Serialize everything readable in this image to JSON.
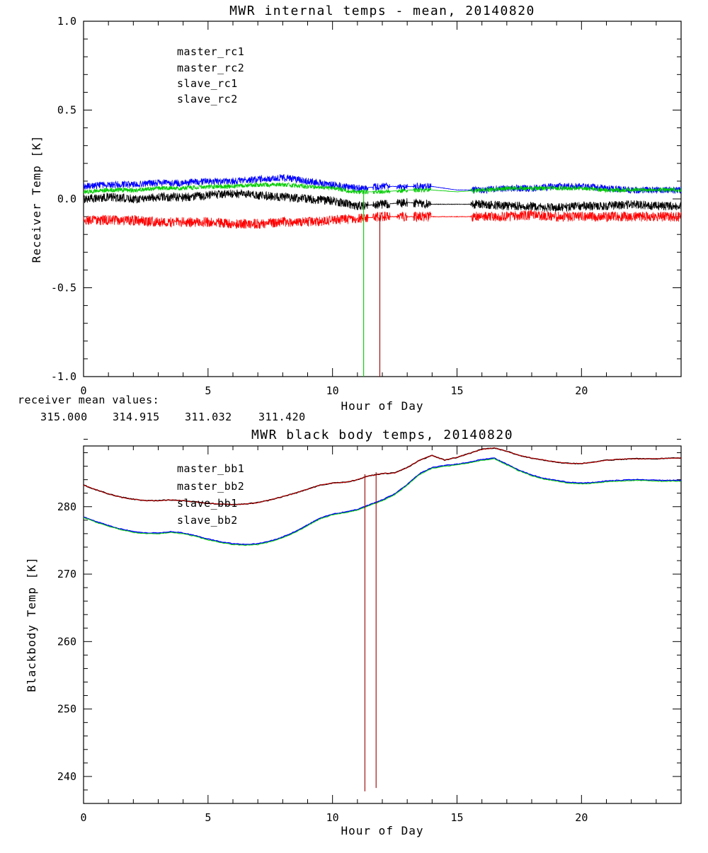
{
  "chart_data": [
    {
      "type": "line",
      "title": "MWR internal temps - mean, 20140820",
      "xlabel": "Hour of Day",
      "ylabel": "Receiver Temp [K]",
      "xlim": [
        0,
        24
      ],
      "ylim": [
        -1.0,
        1.0
      ],
      "xticks": [
        0,
        5,
        10,
        15,
        20
      ],
      "xtick_labels": [
        "0",
        "5",
        "10",
        "15",
        "20"
      ],
      "yticks": [
        -1.0,
        -0.5,
        0.0,
        0.5,
        1.0
      ],
      "ytick_labels": [
        "-1.0",
        "-0.5",
        "0.0",
        "0.5",
        "1.0"
      ],
      "x_minor_step": 1,
      "y_minor_step": 0.1,
      "grid": false,
      "legend_position": "upper-left-inside",
      "x_step": 1,
      "sample_step": 0.01,
      "series": [
        {
          "name": "master_rc1",
          "color": "#000000",
          "noise": 0.025,
          "values": [
            0.0,
            0.01,
            0.0,
            0.01,
            0.01,
            0.02,
            0.03,
            0.02,
            0.01,
            0.0,
            -0.01,
            -0.04,
            -0.03,
            -0.02,
            -0.03,
            -0.03,
            -0.03,
            -0.04,
            -0.04,
            -0.05,
            -0.04,
            -0.04,
            -0.03,
            -0.04,
            -0.04
          ]
        },
        {
          "name": "master_rc2",
          "color": "#ff0000",
          "noise": 0.028,
          "values": [
            -0.12,
            -0.12,
            -0.12,
            -0.13,
            -0.13,
            -0.13,
            -0.14,
            -0.14,
            -0.13,
            -0.13,
            -0.12,
            -0.11,
            -0.1,
            -0.1,
            -0.1,
            -0.1,
            -0.1,
            -0.1,
            -0.09,
            -0.1,
            -0.1,
            -0.1,
            -0.1,
            -0.1,
            -0.1
          ]
        },
        {
          "name": "slave_rc1",
          "color": "#0000ff",
          "noise": 0.02,
          "values": [
            0.07,
            0.08,
            0.08,
            0.09,
            0.09,
            0.1,
            0.1,
            0.11,
            0.12,
            0.1,
            0.08,
            0.06,
            0.07,
            0.07,
            0.07,
            0.05,
            0.05,
            0.06,
            0.06,
            0.07,
            0.07,
            0.06,
            0.05,
            0.05,
            0.05
          ]
        },
        {
          "name": "slave_rc2",
          "color": "#00cc00",
          "noise": 0.013,
          "values": [
            0.04,
            0.05,
            0.05,
            0.06,
            0.06,
            0.07,
            0.07,
            0.08,
            0.08,
            0.07,
            0.06,
            0.04,
            0.04,
            0.05,
            0.05,
            0.04,
            0.05,
            0.06,
            0.06,
            0.06,
            0.06,
            0.05,
            0.05,
            0.05,
            0.05
          ]
        }
      ],
      "quiet_intervals": [
        [
          11.42,
          11.62
        ],
        [
          12.3,
          12.58
        ],
        [
          13.0,
          13.25
        ],
        [
          13.95,
          15.55
        ]
      ],
      "spikes": [
        {
          "x": 11.25,
          "y_top": 0.05,
          "y_bottom": -1.0,
          "color": "#00cc00"
        },
        {
          "x": 11.9,
          "y_top": -0.09,
          "y_bottom": -1.0,
          "color": "#990000"
        }
      ],
      "footer": {
        "label": "receiver mean values:",
        "values": [
          {
            "text": "315.000",
            "color": "#000000"
          },
          {
            "text": "314.915",
            "color": "#ff0000"
          },
          {
            "text": "311.032",
            "color": "#0000ff"
          },
          {
            "text": "311.420",
            "color": "#00cc00"
          }
        ]
      }
    },
    {
      "type": "line",
      "title": "MWR black body temps, 20140820",
      "xlabel": "Hour of Day",
      "ylabel": "Blackbody Temp [K]",
      "xlim": [
        0,
        24
      ],
      "ylim": [
        236,
        289
      ],
      "xticks": [
        0,
        5,
        10,
        15,
        20
      ],
      "xtick_labels": [
        "0",
        "5",
        "10",
        "15",
        "20"
      ],
      "yticks": [
        240,
        250,
        260,
        270,
        280
      ],
      "ytick_labels": [
        "240",
        "250",
        "260",
        "270",
        "280"
      ],
      "x_minor_step": 1,
      "y_minor_step": 2,
      "grid": false,
      "legend_position": "upper-left-inside",
      "x_step": 0.5,
      "sample_step": 0.05,
      "series": [
        {
          "name": "master_bb1",
          "color": "#000000",
          "noise": 0.05,
          "width": 1.6,
          "values": [
            283.2,
            282.5,
            281.9,
            281.4,
            281.1,
            280.9,
            280.9,
            281.0,
            280.9,
            280.7,
            280.5,
            280.4,
            280.3,
            280.4,
            280.6,
            281.0,
            281.5,
            282.0,
            282.6,
            283.2,
            283.5,
            283.6,
            284.0,
            284.6,
            284.9,
            285.0,
            285.8,
            286.9,
            287.6,
            286.9,
            287.3,
            287.9,
            288.5,
            288.7,
            288.2,
            287.6,
            287.2,
            286.9,
            286.6,
            286.4,
            286.4,
            286.6,
            286.9,
            287.0,
            287.1,
            287.1,
            287.1,
            287.2,
            287.2
          ]
        },
        {
          "name": "master_bb2",
          "color": "#cc0000",
          "noise": 0.05,
          "width": 1.0,
          "values": [
            283.2,
            282.5,
            281.9,
            281.4,
            281.1,
            280.9,
            280.9,
            281.0,
            280.9,
            280.7,
            280.5,
            280.4,
            280.3,
            280.4,
            280.6,
            281.0,
            281.5,
            282.0,
            282.6,
            283.2,
            283.5,
            283.6,
            284.0,
            284.6,
            284.9,
            285.0,
            285.8,
            286.9,
            287.6,
            286.9,
            287.3,
            287.9,
            288.5,
            288.7,
            288.2,
            287.6,
            287.2,
            286.9,
            286.6,
            286.4,
            286.4,
            286.6,
            286.9,
            287.0,
            287.1,
            287.1,
            287.1,
            287.2,
            287.2
          ]
        },
        {
          "name": "slave_bb1",
          "color": "#0000ff",
          "noise": 0.05,
          "width": 1.5,
          "values": [
            278.5,
            277.8,
            277.2,
            276.7,
            276.3,
            276.1,
            276.1,
            276.3,
            276.1,
            275.7,
            275.2,
            274.8,
            274.5,
            274.4,
            274.5,
            274.9,
            275.5,
            276.3,
            277.3,
            278.3,
            278.9,
            279.2,
            279.6,
            280.3,
            281.0,
            281.9,
            283.3,
            284.9,
            285.8,
            286.1,
            286.3,
            286.6,
            287.0,
            287.2,
            286.3,
            285.4,
            284.7,
            284.2,
            283.9,
            283.6,
            283.5,
            283.6,
            283.8,
            283.9,
            284.0,
            284.0,
            283.9,
            283.9,
            283.9
          ]
        },
        {
          "name": "slave_bb2",
          "color": "#00cc00",
          "noise": 0.05,
          "width": 1.0,
          "offset": -0.12,
          "values": [
            278.5,
            277.8,
            277.2,
            276.7,
            276.3,
            276.1,
            276.1,
            276.3,
            276.1,
            275.7,
            275.2,
            274.8,
            274.5,
            274.4,
            274.5,
            274.9,
            275.5,
            276.3,
            277.3,
            278.3,
            278.9,
            279.2,
            279.6,
            280.3,
            281.0,
            281.9,
            283.3,
            284.9,
            285.8,
            286.1,
            286.3,
            286.6,
            287.0,
            287.2,
            286.3,
            285.4,
            284.7,
            284.2,
            283.9,
            283.6,
            283.5,
            283.6,
            283.8,
            283.9,
            284.0,
            284.0,
            283.9,
            283.9,
            283.9
          ]
        }
      ],
      "spikes": [
        {
          "x": 11.3,
          "y_top": 284.8,
          "y_bottom": 237.8,
          "color": "#990000"
        },
        {
          "x": 11.75,
          "y_top": 285.1,
          "y_bottom": 238.3,
          "color": "#990000"
        }
      ]
    }
  ]
}
